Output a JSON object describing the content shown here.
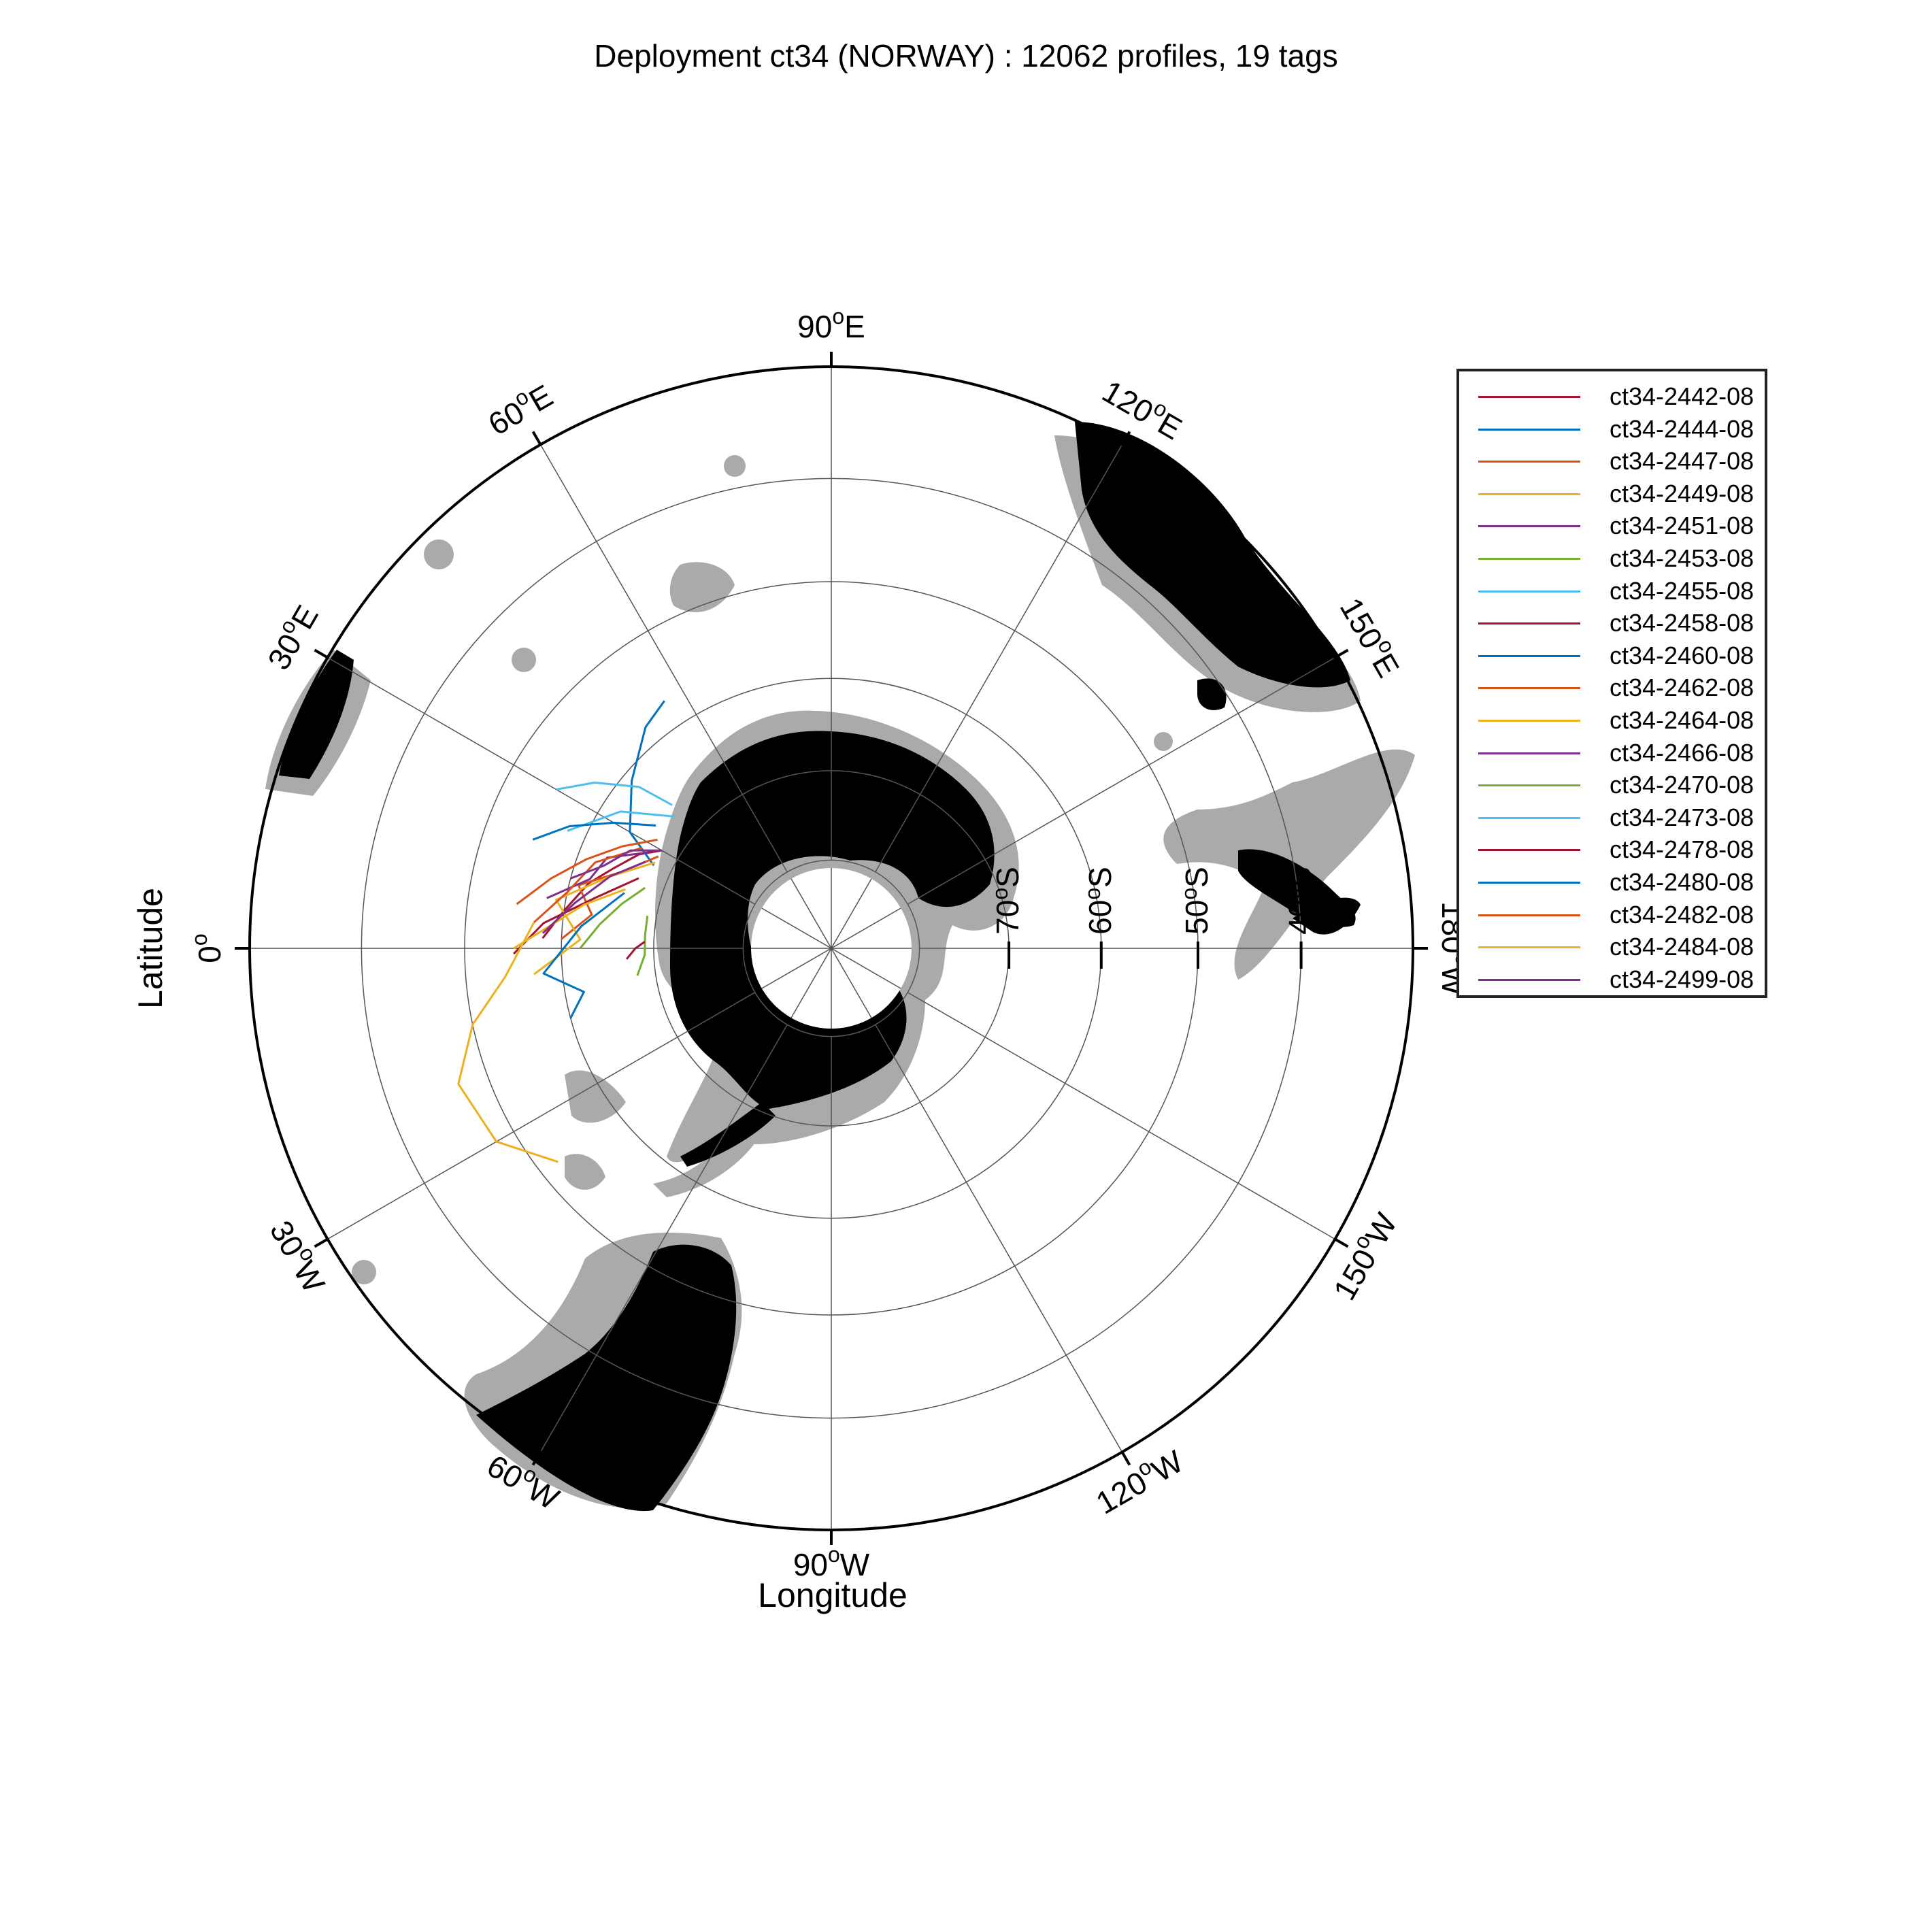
{
  "title": "Deployment ct34 (NORWAY) : 12062 profiles, 19 tags",
  "axis": {
    "xlabel": "Longitude",
    "ylabel": "Latitude"
  },
  "longitude_labels": [
    {
      "deg": "90",
      "hem": "E",
      "lon": 90
    },
    {
      "deg": "60",
      "hem": "E",
      "lon": 60
    },
    {
      "deg": "120",
      "hem": "E",
      "lon": 120
    },
    {
      "deg": "30",
      "hem": "E",
      "lon": 30
    },
    {
      "deg": "150",
      "hem": "E",
      "lon": 150
    },
    {
      "deg": "0",
      "hem": "",
      "lon": 0
    },
    {
      "deg": "180",
      "hem": "W",
      "lon": 180
    },
    {
      "deg": "30",
      "hem": "W",
      "lon": -30
    },
    {
      "deg": "150",
      "hem": "W",
      "lon": -150
    },
    {
      "deg": "60",
      "hem": "W",
      "lon": -60
    },
    {
      "deg": "120",
      "hem": "W",
      "lon": -120
    },
    {
      "deg": "90",
      "hem": "W",
      "lon": -90
    }
  ],
  "latitude_labels": [
    {
      "deg": "70",
      "hem": "S",
      "lat": -70
    },
    {
      "deg": "60",
      "hem": "S",
      "lat": -60
    },
    {
      "deg": "50",
      "hem": "S",
      "lat": -50
    },
    {
      "deg": "40",
      "hem": "S",
      "lat": -40
    }
  ],
  "chart_data": {
    "type": "map",
    "projection": "south polar stereographic",
    "lat_range": [
      -90,
      -30
    ],
    "lat_circles": [
      -80,
      -70,
      -60,
      -50,
      -40,
      -30
    ],
    "meridians_every_deg": 30,
    "colors": {
      "land": "#000000",
      "shelf": "#aaaaaa",
      "grid": "#555555"
    },
    "tracks": [
      {
        "name": "ct34-2442-08",
        "color": "#a2142f",
        "points": [
          [
            2,
            -58
          ],
          [
            8,
            -60
          ],
          [
            15,
            -62
          ],
          [
            20,
            -64
          ],
          [
            26,
            -66
          ],
          [
            30,
            -68
          ]
        ]
      },
      {
        "name": "ct34-2444-08",
        "color": "#0072bd",
        "points": [
          [
            25,
            -68
          ],
          [
            30,
            -64
          ],
          [
            40,
            -61
          ],
          [
            50,
            -58
          ],
          [
            56,
            -57
          ]
        ]
      },
      {
        "name": "ct34-2447-08",
        "color": "#d95319",
        "points": [
          [
            2,
            -60
          ],
          [
            8,
            -63
          ],
          [
            14,
            -61
          ],
          [
            20,
            -65
          ],
          [
            28,
            -68
          ]
        ]
      },
      {
        "name": "ct34-2449-08",
        "color": "#edb120",
        "points": [
          [
            -5,
            -57
          ],
          [
            2,
            -62
          ],
          [
            10,
            -59
          ],
          [
            18,
            -64
          ],
          [
            26,
            -68
          ]
        ]
      },
      {
        "name": "ct34-2451-08",
        "color": "#7e2f8e",
        "points": [
          [
            10,
            -58
          ],
          [
            16,
            -62
          ],
          [
            22,
            -63
          ],
          [
            28,
            -67
          ]
        ]
      },
      {
        "name": "ct34-2453-08",
        "color": "#77ac30",
        "points": [
          [
            -8,
            -68
          ],
          [
            -2,
            -69
          ],
          [
            4,
            -69
          ],
          [
            10,
            -69
          ]
        ]
      },
      {
        "name": "ct34-2455-08",
        "color": "#4dbeee",
        "points": [
          [
            40,
            -67
          ],
          [
            33,
            -62
          ],
          [
            28,
            -60
          ],
          [
            24,
            -58
          ]
        ]
      },
      {
        "name": "ct34-2458-08",
        "color": "#a2142f",
        "points": [
          [
            -1,
            -55
          ],
          [
            5,
            -58
          ],
          [
            12,
            -63
          ],
          [
            20,
            -67
          ]
        ]
      },
      {
        "name": "ct34-2460-08",
        "color": "#0072bd",
        "points": [
          [
            -15,
            -60
          ],
          [
            -10,
            -62
          ],
          [
            -5,
            -58
          ],
          [
            5,
            -62
          ],
          [
            15,
            -66
          ]
        ]
      },
      {
        "name": "ct34-2462-08",
        "color": "#d95319",
        "points": [
          [
            5,
            -57
          ],
          [
            12,
            -60
          ],
          [
            20,
            -62
          ],
          [
            28,
            -66
          ]
        ]
      },
      {
        "name": "ct34-2464-08",
        "color": "#edb120",
        "points": [
          [
            -38,
            -52
          ],
          [
            -30,
            -48
          ],
          [
            -20,
            -47
          ],
          [
            -12,
            -50
          ],
          [
            -5,
            -54
          ],
          [
            5,
            -57
          ]
        ]
      },
      {
        "name": "ct34-2466-08",
        "color": "#7e2f8e",
        "points": [
          [
            15,
            -60
          ],
          [
            20,
            -63
          ],
          [
            26,
            -65
          ],
          [
            30,
            -68
          ]
        ]
      },
      {
        "name": "ct34-2470-08",
        "color": "#77ac30",
        "points": [
          [
            0,
            -62
          ],
          [
            6,
            -64
          ],
          [
            12,
            -66
          ],
          [
            18,
            -68
          ]
        ]
      },
      {
        "name": "ct34-2473-08",
        "color": "#4dbeee",
        "points": [
          [
            30,
            -55
          ],
          [
            35,
            -58
          ],
          [
            40,
            -62
          ],
          [
            42,
            -66
          ]
        ]
      },
      {
        "name": "ct34-2478-08",
        "color": "#a2142f",
        "points": [
          [
            -3,
            -67
          ],
          [
            0,
            -68
          ],
          [
            2,
            -69
          ]
        ]
      },
      {
        "name": "ct34-2480-08",
        "color": "#0072bd",
        "points": [
          [
            20,
            -55
          ],
          [
            25,
            -58
          ],
          [
            30,
            -62
          ],
          [
            35,
            -66
          ]
        ]
      },
      {
        "name": "ct34-2482-08",
        "color": "#d95319",
        "points": [
          [
            8,
            -55
          ],
          [
            14,
            -58
          ],
          [
            20,
            -61
          ],
          [
            26,
            -64
          ],
          [
            32,
            -67
          ]
        ]
      },
      {
        "name": "ct34-2484-08",
        "color": "#edb120",
        "points": [
          [
            0,
            -55
          ],
          [
            5,
            -59
          ],
          [
            10,
            -62
          ],
          [
            16,
            -66
          ]
        ]
      },
      {
        "name": "ct34-2499-08",
        "color": "#7e2f8e",
        "points": [
          [
            3,
            -58
          ],
          [
            10,
            -61
          ],
          [
            18,
            -64
          ],
          [
            25,
            -67
          ]
        ]
      }
    ]
  }
}
